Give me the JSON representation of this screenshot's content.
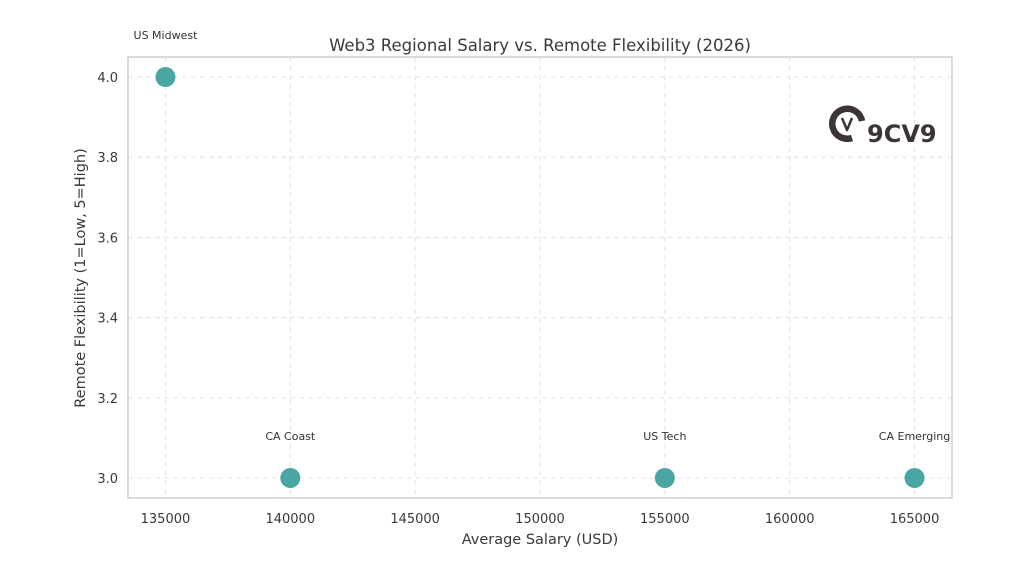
{
  "chart_data": {
    "type": "scatter",
    "title": "Web3 Regional Salary vs. Remote Flexibility (2026)",
    "xlabel": "Average Salary (USD)",
    "ylabel": "Remote Flexibility (1=Low, 5=High)",
    "xlim": [
      133500,
      166500
    ],
    "ylim": [
      2.95,
      4.05
    ],
    "x_ticks": [
      "135000",
      "140000",
      "145000",
      "150000",
      "155000",
      "160000",
      "165000"
    ],
    "y_ticks": [
      "3.0",
      "3.2",
      "3.4",
      "3.6",
      "3.8",
      "4.0"
    ],
    "grid": true,
    "marker_color": "#3a9e9a",
    "points": [
      {
        "label": "US Midwest",
        "x": 135000,
        "y": 4.0
      },
      {
        "label": "CA Coast",
        "x": 140000,
        "y": 3.0
      },
      {
        "label": "US Tech",
        "x": 155000,
        "y": 3.0
      },
      {
        "label": "CA Emerging",
        "x": 165000,
        "y": 3.0
      }
    ]
  },
  "watermark": {
    "text": "9CV9",
    "icon": "9cv9-logo-icon",
    "color": "#3d3535"
  }
}
